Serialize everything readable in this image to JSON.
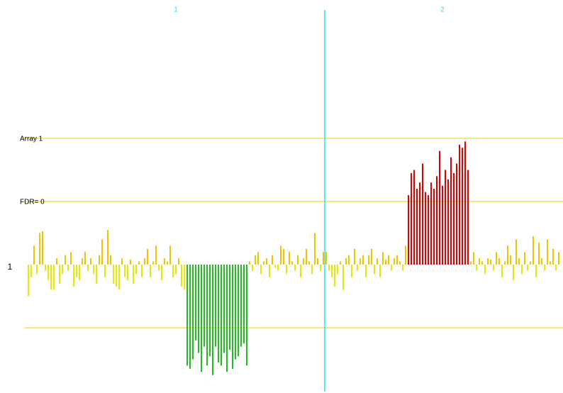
{
  "chart_data": {
    "type": "bar",
    "baseline_label": "1",
    "xlim": [
      -10,
      188.5
    ],
    "ylim": [
      -2,
      4
    ],
    "up_color": "#f0c400",
    "down_color": "#e8e800",
    "boundary_color": "#33ddee",
    "segments": [
      {
        "label": "1",
        "start": 0,
        "end": 104
      },
      {
        "label": "2",
        "start": 105,
        "end": 187
      }
    ],
    "reference_lines": [
      {
        "value": 2,
        "label": "Array 1"
      },
      {
        "value": 1,
        "label": "FDR= 0"
      },
      {
        "value": -1
      }
    ],
    "line_color": "#e8d000",
    "regions": [
      {
        "start": 56,
        "end": 77,
        "color": "#22bb22"
      },
      {
        "start": 134,
        "end": 155,
        "color": "#e00000"
      }
    ],
    "values": [
      -0.5,
      -0.2,
      0.3,
      -0.15,
      0.5,
      0.53,
      -0.1,
      -0.25,
      -0.4,
      -0.4,
      0.1,
      -0.3,
      -0.15,
      0.15,
      -0.1,
      0.2,
      -0.35,
      -0.2,
      -0.25,
      0.1,
      0.2,
      -0.1,
      0.1,
      -0.15,
      -0.3,
      0.15,
      0.4,
      -0.2,
      0.55,
      0.15,
      -0.3,
      -0.35,
      -0.4,
      0.1,
      -0.2,
      -0.25,
      0.08,
      -0.3,
      -0.15,
      0.05,
      -0.2,
      0.1,
      0.25,
      -0.2,
      0.05,
      0.3,
      -0.1,
      -0.25,
      0.1,
      0.05,
      0.3,
      -0.2,
      -0.15,
      0.1,
      -0.35,
      -0.4,
      -1.6,
      -1.65,
      -1.5,
      -1.2,
      -1.4,
      -1.7,
      -1.3,
      -1.6,
      -1.45,
      -1.75,
      -1.3,
      -1.55,
      -1.6,
      -1.4,
      -1.7,
      -1.35,
      -1.65,
      -1.5,
      -1.45,
      -1.3,
      -1.25,
      -1.6,
      0.05,
      -0.1,
      0.15,
      0.2,
      -0.15,
      0.05,
      0.1,
      -0.2,
      0.15,
      -0.05,
      -0.1,
      0.3,
      0.25,
      -0.15,
      0.2,
      0.05,
      -0.1,
      0.15,
      -0.2,
      0.1,
      0.25,
      0.05,
      -0.15,
      0.5,
      0.1,
      -0.1,
      0.2,
      0.2,
      -0.1,
      -0.2,
      -0.35,
      -0.15,
      0.05,
      -0.4,
      0.1,
      0.15,
      -0.2,
      0.25,
      -0.1,
      0.1,
      0.15,
      -0.2,
      0.15,
      0.25,
      -0.15,
      0.1,
      -0.2,
      0.2,
      0.08,
      0.15,
      -0.1,
      0.1,
      0.15,
      0.05,
      -0.1,
      0.3,
      1.1,
      1.45,
      1.5,
      1.2,
      1.3,
      1.6,
      1.15,
      1.1,
      1.3,
      1.2,
      1.4,
      1.8,
      1.25,
      1.5,
      1.35,
      1.7,
      1.45,
      1.6,
      1.9,
      1.85,
      1.95,
      1.5,
      0.05,
      0.2,
      -0.1,
      0.1,
      0.05,
      -0.15,
      0.1,
      0.08,
      -0.1,
      0.2,
      0.1,
      -0.2,
      0.05,
      0.3,
      0.15,
      -0.25,
      0.4,
      0.1,
      -0.15,
      0.2,
      -0.1,
      0.05,
      0.45,
      -0.2,
      0.35,
      0.1,
      -0.1,
      0.4,
      0.05,
      0.25,
      -0.1,
      0.2
    ]
  }
}
